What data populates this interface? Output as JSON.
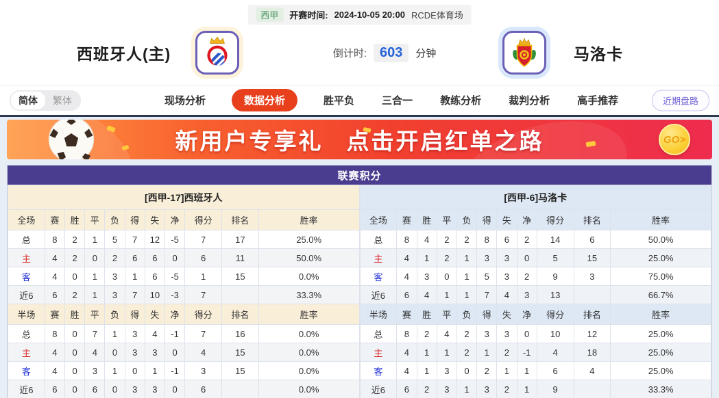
{
  "match_bar": {
    "league": "西甲",
    "kickoff_label": "开赛时间:",
    "kickoff_time": "2024-10-05 20:00",
    "venue": "RCDE体育场"
  },
  "header": {
    "home_name": "西班牙人(主)",
    "away_name": "马洛卡",
    "countdown_label": "倒计时:",
    "countdown_value": "603",
    "countdown_unit": "分钟"
  },
  "lang": {
    "simplified": "简体",
    "traditional": "繁体"
  },
  "nav": {
    "tabs": [
      {
        "label": "现场分析",
        "active": false
      },
      {
        "label": "数据分析",
        "active": true
      },
      {
        "label": "胜平负",
        "active": false
      },
      {
        "label": "三合一",
        "active": false
      },
      {
        "label": "教练分析",
        "active": false
      },
      {
        "label": "裁判分析",
        "active": false
      },
      {
        "label": "高手推荐",
        "active": false
      }
    ],
    "recent_button": "近期盘路"
  },
  "banner": {
    "text_main": "新用户专享礼",
    "text_sub": "点击开启红单之路",
    "go_label": "GO>"
  },
  "standings": {
    "title": "联赛积分",
    "columns_full": [
      "全场",
      "赛",
      "胜",
      "平",
      "负",
      "得",
      "失",
      "净",
      "得分",
      "排名",
      "胜率"
    ],
    "columns_half": [
      "半场",
      "赛",
      "胜",
      "平",
      "负",
      "得",
      "失",
      "净",
      "得分",
      "排名",
      "胜率"
    ],
    "home": {
      "subtitle": "[西甲-17]西班牙人",
      "full_rows": [
        [
          "总",
          "8",
          "2",
          "1",
          "5",
          "7",
          "12",
          "-5",
          "7",
          "17",
          "25.0%"
        ],
        [
          "主",
          "4",
          "2",
          "0",
          "2",
          "6",
          "6",
          "0",
          "6",
          "11",
          "50.0%"
        ],
        [
          "客",
          "4",
          "0",
          "1",
          "3",
          "1",
          "6",
          "-5",
          "1",
          "15",
          "0.0%"
        ],
        [
          "近6",
          "6",
          "2",
          "1",
          "3",
          "7",
          "10",
          "-3",
          "7",
          "",
          "33.3%"
        ]
      ],
      "half_rows": [
        [
          "总",
          "8",
          "0",
          "7",
          "1",
          "3",
          "4",
          "-1",
          "7",
          "16",
          "0.0%"
        ],
        [
          "主",
          "4",
          "0",
          "4",
          "0",
          "3",
          "3",
          "0",
          "4",
          "15",
          "0.0%"
        ],
        [
          "客",
          "4",
          "0",
          "3",
          "1",
          "0",
          "1",
          "-1",
          "3",
          "15",
          "0.0%"
        ],
        [
          "近6",
          "6",
          "0",
          "6",
          "0",
          "3",
          "3",
          "0",
          "6",
          "",
          "0.0%"
        ]
      ]
    },
    "away": {
      "subtitle": "[西甲-6]马洛卡",
      "full_rows": [
        [
          "总",
          "8",
          "4",
          "2",
          "2",
          "8",
          "6",
          "2",
          "14",
          "6",
          "50.0%"
        ],
        [
          "主",
          "4",
          "1",
          "2",
          "1",
          "3",
          "3",
          "0",
          "5",
          "15",
          "25.0%"
        ],
        [
          "客",
          "4",
          "3",
          "0",
          "1",
          "5",
          "3",
          "2",
          "9",
          "3",
          "75.0%"
        ],
        [
          "近6",
          "6",
          "4",
          "1",
          "1",
          "7",
          "4",
          "3",
          "13",
          "",
          "66.7%"
        ]
      ],
      "half_rows": [
        [
          "总",
          "8",
          "2",
          "4",
          "2",
          "3",
          "3",
          "0",
          "10",
          "12",
          "25.0%"
        ],
        [
          "主",
          "4",
          "1",
          "1",
          "2",
          "1",
          "2",
          "-1",
          "4",
          "18",
          "25.0%"
        ],
        [
          "客",
          "4",
          "1",
          "3",
          "0",
          "2",
          "1",
          "1",
          "6",
          "4",
          "25.0%"
        ],
        [
          "近6",
          "6",
          "2",
          "3",
          "1",
          "3",
          "2",
          "1",
          "9",
          "",
          "33.3%"
        ]
      ]
    }
  },
  "colors": {
    "accent_red": "#e8401c",
    "title_purple": "#4a3d8f",
    "home_header_bg": "#f9efd9",
    "away_header_bg": "#dee8f4",
    "row_label_home_red": "#d92b2b",
    "row_label_away_blue": "#2333d6"
  }
}
